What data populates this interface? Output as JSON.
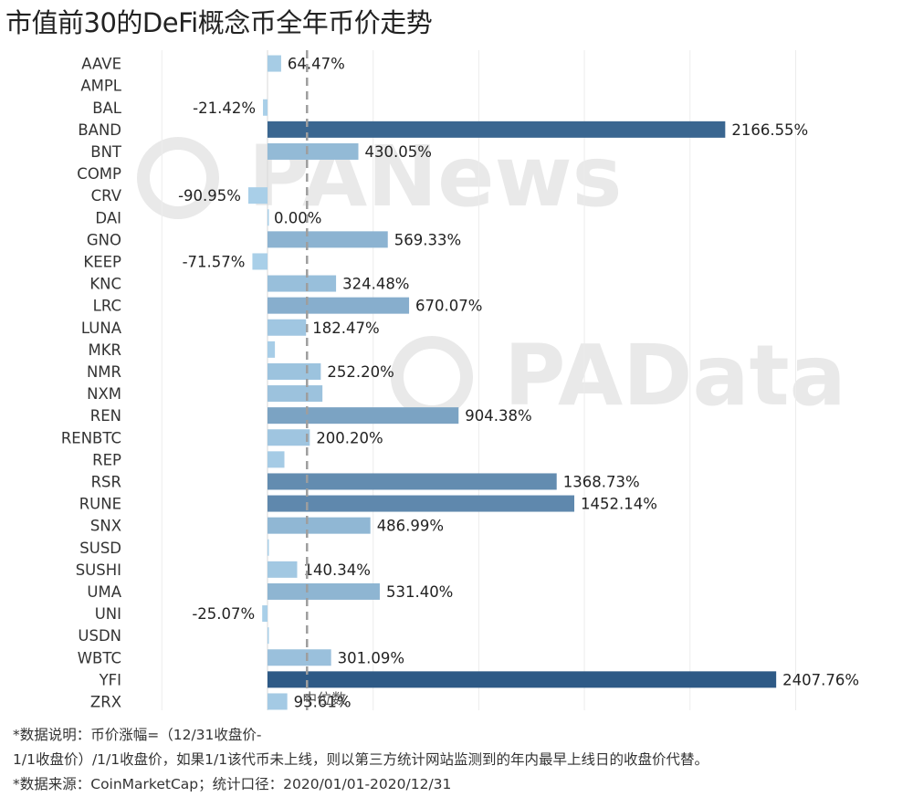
{
  "title": "市值前30的DeFi概念币全年币价走势",
  "notes": [
    "*数据说明：币价涨幅=（12/31收盘价-",
    "1/1收盘价）/1/1收盘价，如果1/1该代币未上线，则以第三方统计网站监测到的年内最早上线日的收盘价代替。",
    "*数据来源：CoinMarketCap；统计口径：2020/01/01-2020/12/31"
  ],
  "watermarks": [
    "PANews",
    "PAData"
  ],
  "reference_line_label": "中位数",
  "colors": {
    "low": "#a9cfe8",
    "high": "#2e5a86",
    "reference_line": "#9e9e9e",
    "watermark": "#e9e9e9"
  },
  "chart_data": {
    "type": "bar",
    "orientation": "horizontal",
    "categories": [
      "AAVE",
      "AMPL",
      "BAL",
      "BAND",
      "BNT",
      "COMP",
      "CRV",
      "DAI",
      "GNO",
      "KEEP",
      "KNC",
      "LRC",
      "LUNA",
      "MKR",
      "NMR",
      "NXM",
      "REN",
      "RENBTC",
      "REP",
      "RSR",
      "RUNE",
      "SNX",
      "SUSD",
      "SUSHI",
      "UMA",
      "UNI",
      "USDN",
      "WBTC",
      "YFI",
      "ZRX"
    ],
    "values": [
      64.47,
      null,
      -21.42,
      2166.55,
      430.05,
      null,
      -90.95,
      0.0,
      569.33,
      -71.57,
      324.48,
      670.07,
      182.47,
      35.0,
      252.2,
      260.0,
      904.38,
      200.2,
      80.0,
      1368.73,
      1452.14,
      486.99,
      5.0,
      140.34,
      531.4,
      -25.07,
      3.0,
      301.09,
      2407.76,
      93.61
    ],
    "labels": [
      "64.47%",
      "",
      "-21.42%",
      "2166.55%",
      "430.05%",
      "",
      "-90.95%",
      "0.00%",
      "569.33%",
      "-71.57%",
      "324.48%",
      "670.07%",
      "182.47%",
      "",
      "252.20%",
      "",
      "904.38%",
      "200.20%",
      "",
      "1368.73%",
      "1452.14%",
      "486.99%",
      "",
      "140.34%",
      "531.40%",
      "-25.07%",
      "",
      "301.09%",
      "2407.76%",
      "93.61%"
    ],
    "reference_line": {
      "value": 187.0,
      "label": "中位数"
    },
    "xlim": [
      -500,
      2600
    ],
    "grid": true,
    "unit": "%"
  }
}
